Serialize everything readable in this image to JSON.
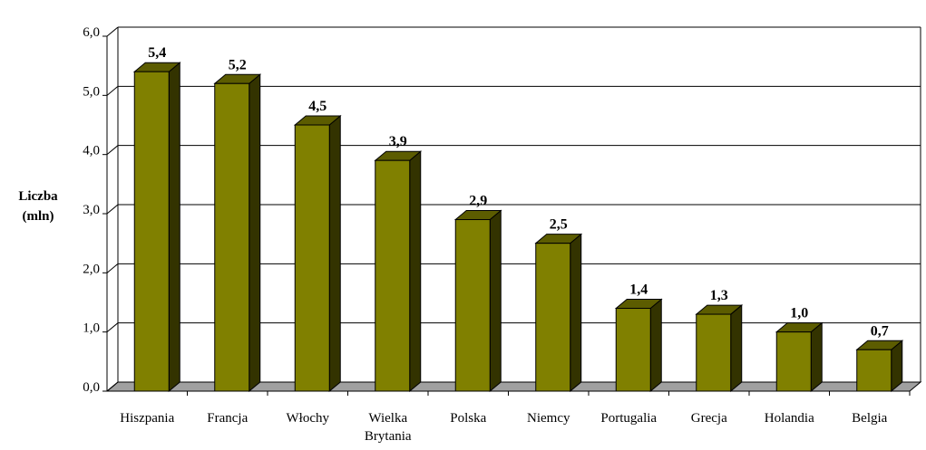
{
  "chart_data": {
    "type": "bar3d",
    "ylabel": [
      "Liczba",
      "(mln)"
    ],
    "categories": [
      "Hiszpania",
      "Francja",
      "Włochy",
      "Wielka Brytania",
      "Polska",
      "Niemcy",
      "Portugalia",
      "Grecja",
      "Holandia",
      "Belgia"
    ],
    "values": [
      5.4,
      5.2,
      4.5,
      3.9,
      2.9,
      2.5,
      1.4,
      1.3,
      1.0,
      0.7
    ],
    "value_labels": [
      "5,4",
      "5,2",
      "4,5",
      "3,9",
      "2,9",
      "2,5",
      "1,4",
      "1,3",
      "1,0",
      "0,7"
    ],
    "color": "#808000",
    "ylim": [
      0,
      6
    ],
    "yticks": [
      {
        "value": 0,
        "label": "0,0"
      },
      {
        "value": 1,
        "label": "1,0"
      },
      {
        "value": 2,
        "label": "2,0"
      },
      {
        "value": 3,
        "label": "3,0"
      },
      {
        "value": 4,
        "label": "4,0"
      },
      {
        "value": 5,
        "label": "5,0"
      },
      {
        "value": 6,
        "label": "6,0"
      }
    ],
    "grid": true
  }
}
